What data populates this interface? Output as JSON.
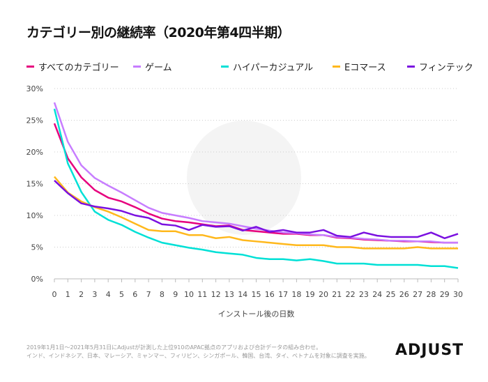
{
  "title": "カテゴリー別の継続率（2020年第4四半期）",
  "footnote": [
    "2019年1月1日～2021年5月31日にAdjustが計測した上位910のAPAC拠点のアプリおよび合計データの組み合わせ。",
    "インド、インドネシア、日本、マレーシア、ミャンマー、フィリピン、シンガポール、韓国、台湾、タイ、ベトナムを対象に調査を実施。"
  ],
  "logo": "ADJUST",
  "chart_data": {
    "type": "line",
    "title": "カテゴリー別の継続率（2020年第4四半期）",
    "xlabel": "インストール後の日数",
    "ylabel": "",
    "x": [
      0,
      1,
      2,
      3,
      4,
      5,
      6,
      7,
      8,
      9,
      10,
      11,
      12,
      13,
      14,
      15,
      16,
      17,
      18,
      19,
      20,
      21,
      22,
      23,
      24,
      25,
      26,
      27,
      28,
      29,
      30
    ],
    "ylim": [
      0,
      30
    ],
    "yticks": [
      "0%",
      "5%",
      "10%",
      "15%",
      "20%",
      "25%",
      "30%"
    ],
    "grid": "horizontal dotted",
    "legend": "top",
    "series": [
      {
        "name": "すべてのカテゴリー",
        "color": "#e6007e",
        "values": [
          24.5,
          19,
          16,
          14,
          12.8,
          12.2,
          11.3,
          10.3,
          9.5,
          9.1,
          8.9,
          8.6,
          8.3,
          8.4,
          7.7,
          7.5,
          7.3,
          7.1,
          7.1,
          6.9,
          6.9,
          6.5,
          6.4,
          6.2,
          6.1,
          6.0,
          5.9,
          5.9,
          5.8,
          5.7,
          5.7
        ]
      },
      {
        "name": "ゲーム",
        "color": "#c77dff",
        "values": [
          27.8,
          21.6,
          17.9,
          15.9,
          14.7,
          13.6,
          12.4,
          11.2,
          10.4,
          10.0,
          9.6,
          9.1,
          8.9,
          8.7,
          8.3,
          7.9,
          7.6,
          7.3,
          7.2,
          7.0,
          6.9,
          6.6,
          6.5,
          6.3,
          6.2,
          6.0,
          6.0,
          5.9,
          5.9,
          5.7,
          5.7
        ]
      },
      {
        "name": "ハイパーカジュアル",
        "color": "#00e0d6",
        "values": [
          26.8,
          18.2,
          13.7,
          10.6,
          9.3,
          8.5,
          7.4,
          6.5,
          5.7,
          5.3,
          4.9,
          4.6,
          4.2,
          4.0,
          3.8,
          3.3,
          3.1,
          3.1,
          2.9,
          3.1,
          2.8,
          2.4,
          2.4,
          2.4,
          2.2,
          2.2,
          2.2,
          2.2,
          2.0,
          2.0,
          1.7
        ]
      },
      {
        "name": "Eコマース",
        "color": "#ffb81c",
        "values": [
          16.1,
          13.6,
          12.2,
          11.3,
          10.6,
          9.7,
          8.7,
          7.7,
          7.5,
          7.5,
          6.9,
          6.9,
          6.4,
          6.6,
          6.1,
          5.9,
          5.7,
          5.5,
          5.3,
          5.3,
          5.3,
          5.0,
          5.0,
          4.8,
          4.8,
          4.8,
          4.8,
          5.0,
          4.8,
          4.8,
          4.8
        ]
      },
      {
        "name": "フィンテック",
        "color": "#7a10e0",
        "values": [
          15.5,
          13.5,
          11.9,
          11.4,
          11.1,
          10.7,
          10.0,
          9.6,
          8.6,
          8.4,
          7.7,
          8.5,
          8.2,
          8.3,
          7.6,
          8.2,
          7.4,
          7.7,
          7.3,
          7.3,
          7.7,
          6.8,
          6.6,
          7.3,
          6.8,
          6.6,
          6.6,
          6.6,
          7.3,
          6.4,
          7.1
        ]
      }
    ]
  }
}
